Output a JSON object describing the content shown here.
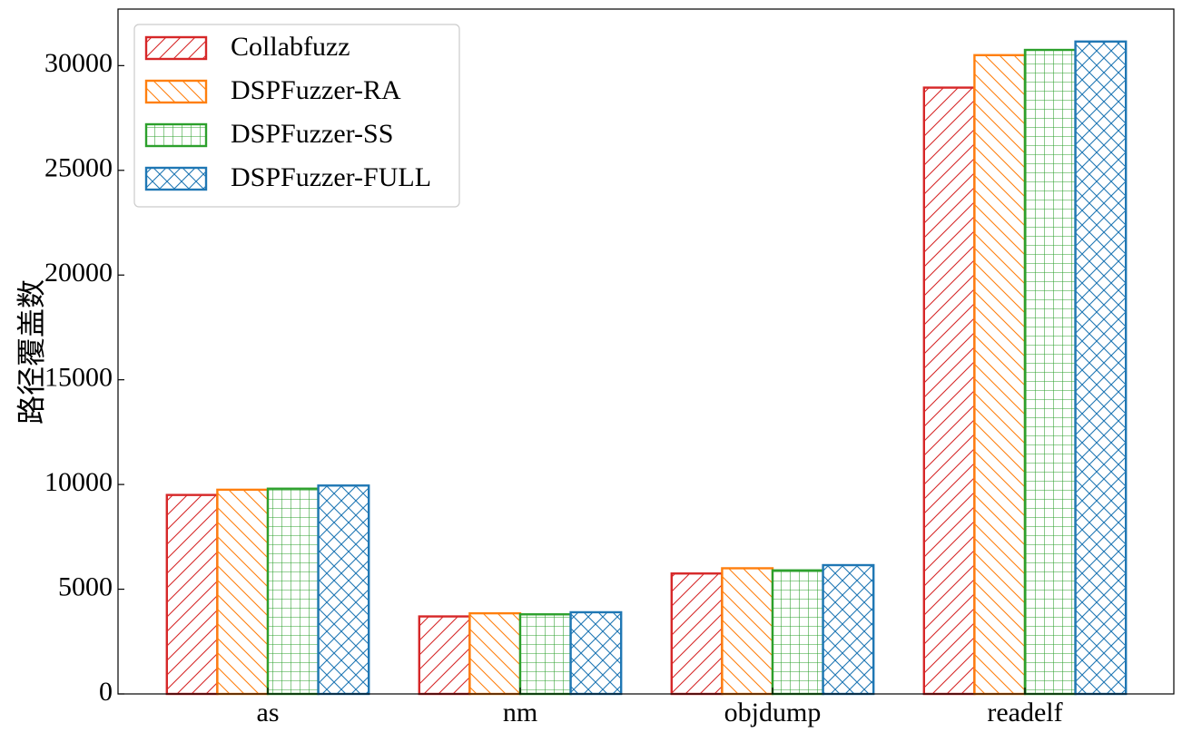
{
  "chart_data": {
    "type": "bar",
    "title": "",
    "xlabel": "",
    "ylabel": "路径覆盖数",
    "categories": [
      "as",
      "nm",
      "objdump",
      "readelf"
    ],
    "ylim": [
      0,
      32700
    ],
    "yticks": [
      0,
      5000,
      10000,
      15000,
      20000,
      25000,
      30000
    ],
    "grid": false,
    "legend_position": "top-left",
    "series": [
      {
        "name": "Collabfuzz",
        "color": "#d62728",
        "hatch": "forward-diagonal",
        "values": [
          9500,
          3700,
          5750,
          28950
        ]
      },
      {
        "name": "DSPFuzzer-RA",
        "color": "#ff7f0e",
        "hatch": "back-diagonal",
        "values": [
          9750,
          3850,
          6000,
          30500
        ]
      },
      {
        "name": "DSPFuzzer-SS",
        "color": "#2ca02c",
        "hatch": "grid",
        "values": [
          9800,
          3800,
          5900,
          30750
        ]
      },
      {
        "name": "DSPFuzzer-FULL",
        "color": "#1f77b4",
        "hatch": "cross-diagonal",
        "values": [
          9950,
          3900,
          6150,
          31150
        ]
      }
    ]
  }
}
